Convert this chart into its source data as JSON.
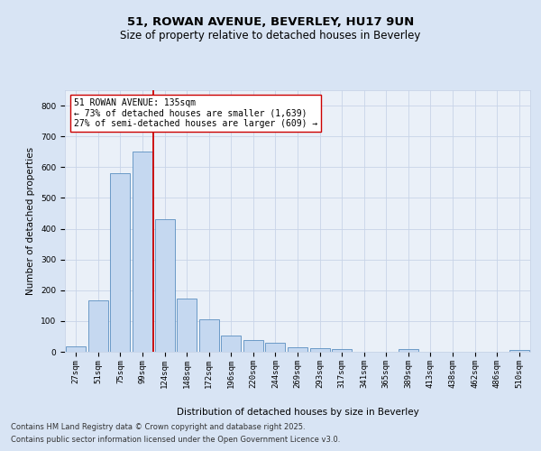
{
  "title_line1": "51, ROWAN AVENUE, BEVERLEY, HU17 9UN",
  "title_line2": "Size of property relative to detached houses in Beverley",
  "xlabel": "Distribution of detached houses by size in Beverley",
  "ylabel": "Number of detached properties",
  "categories": [
    "27sqm",
    "51sqm",
    "75sqm",
    "99sqm",
    "124sqm",
    "148sqm",
    "172sqm",
    "196sqm",
    "220sqm",
    "244sqm",
    "269sqm",
    "293sqm",
    "317sqm",
    "341sqm",
    "365sqm",
    "389sqm",
    "413sqm",
    "438sqm",
    "462sqm",
    "486sqm",
    "510sqm"
  ],
  "values": [
    18,
    168,
    580,
    650,
    430,
    172,
    105,
    52,
    38,
    30,
    14,
    12,
    9,
    0,
    0,
    8,
    0,
    0,
    0,
    0,
    6
  ],
  "bar_color": "#c5d8f0",
  "bar_edge_color": "#5a8fc0",
  "vline_color": "#cc0000",
  "annotation_text": "51 ROWAN AVENUE: 135sqm\n← 73% of detached houses are smaller (1,639)\n27% of semi-detached houses are larger (609) →",
  "annotation_box_color": "#ffffff",
  "annotation_box_edge": "#cc0000",
  "ylim": [
    0,
    850
  ],
  "yticks": [
    0,
    100,
    200,
    300,
    400,
    500,
    600,
    700,
    800
  ],
  "grid_color": "#c8d4e8",
  "background_color": "#d8e4f4",
  "plot_background": "#eaf0f8",
  "footer_line1": "Contains HM Land Registry data © Crown copyright and database right 2025.",
  "footer_line2": "Contains public sector information licensed under the Open Government Licence v3.0.",
  "title_fontsize": 9.5,
  "subtitle_fontsize": 8.5,
  "axis_label_fontsize": 7.5,
  "tick_fontsize": 6.5,
  "annotation_fontsize": 7.0,
  "footer_fontsize": 6.0,
  "ylabel_fontsize": 7.5
}
